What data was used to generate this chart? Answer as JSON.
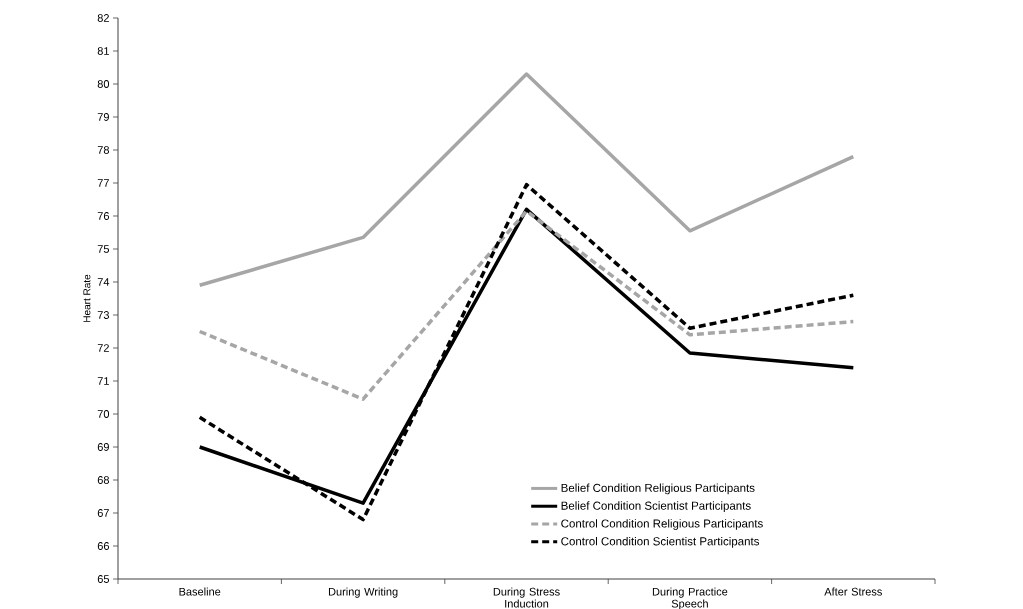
{
  "chart_data": {
    "type": "line",
    "ylabel": "Heart Rate",
    "categories": [
      "Baseline",
      "During Writing",
      "During Stress Induction",
      "During Practice Speech",
      "After Stress"
    ],
    "series": [
      {
        "name": "Belief Condition Religious Participants",
        "color": "#a6a6a6",
        "line_style": "solid",
        "values": [
          73.9,
          75.35,
          80.3,
          75.55,
          77.8
        ]
      },
      {
        "name": "Belief Condition Scientist Participants",
        "color": "#000000",
        "line_style": "solid",
        "values": [
          69.0,
          67.3,
          76.2,
          71.85,
          71.4
        ]
      },
      {
        "name": "Control Condition Religious Participants",
        "color": "#a6a6a6",
        "line_style": "dashed",
        "values": [
          72.5,
          70.45,
          76.15,
          72.4,
          72.8
        ]
      },
      {
        "name": "Control Condition Scientist Participants",
        "color": "#000000",
        "line_style": "dashed",
        "values": [
          69.9,
          66.8,
          76.95,
          72.6,
          73.6
        ]
      }
    ],
    "ylim": [
      65,
      82
    ],
    "yticks": [
      65,
      66,
      67,
      68,
      69,
      70,
      71,
      72,
      73,
      74,
      75,
      76,
      77,
      78,
      79,
      80,
      81,
      82
    ],
    "grid": false,
    "legend": "bottom right",
    "marker": "none"
  }
}
